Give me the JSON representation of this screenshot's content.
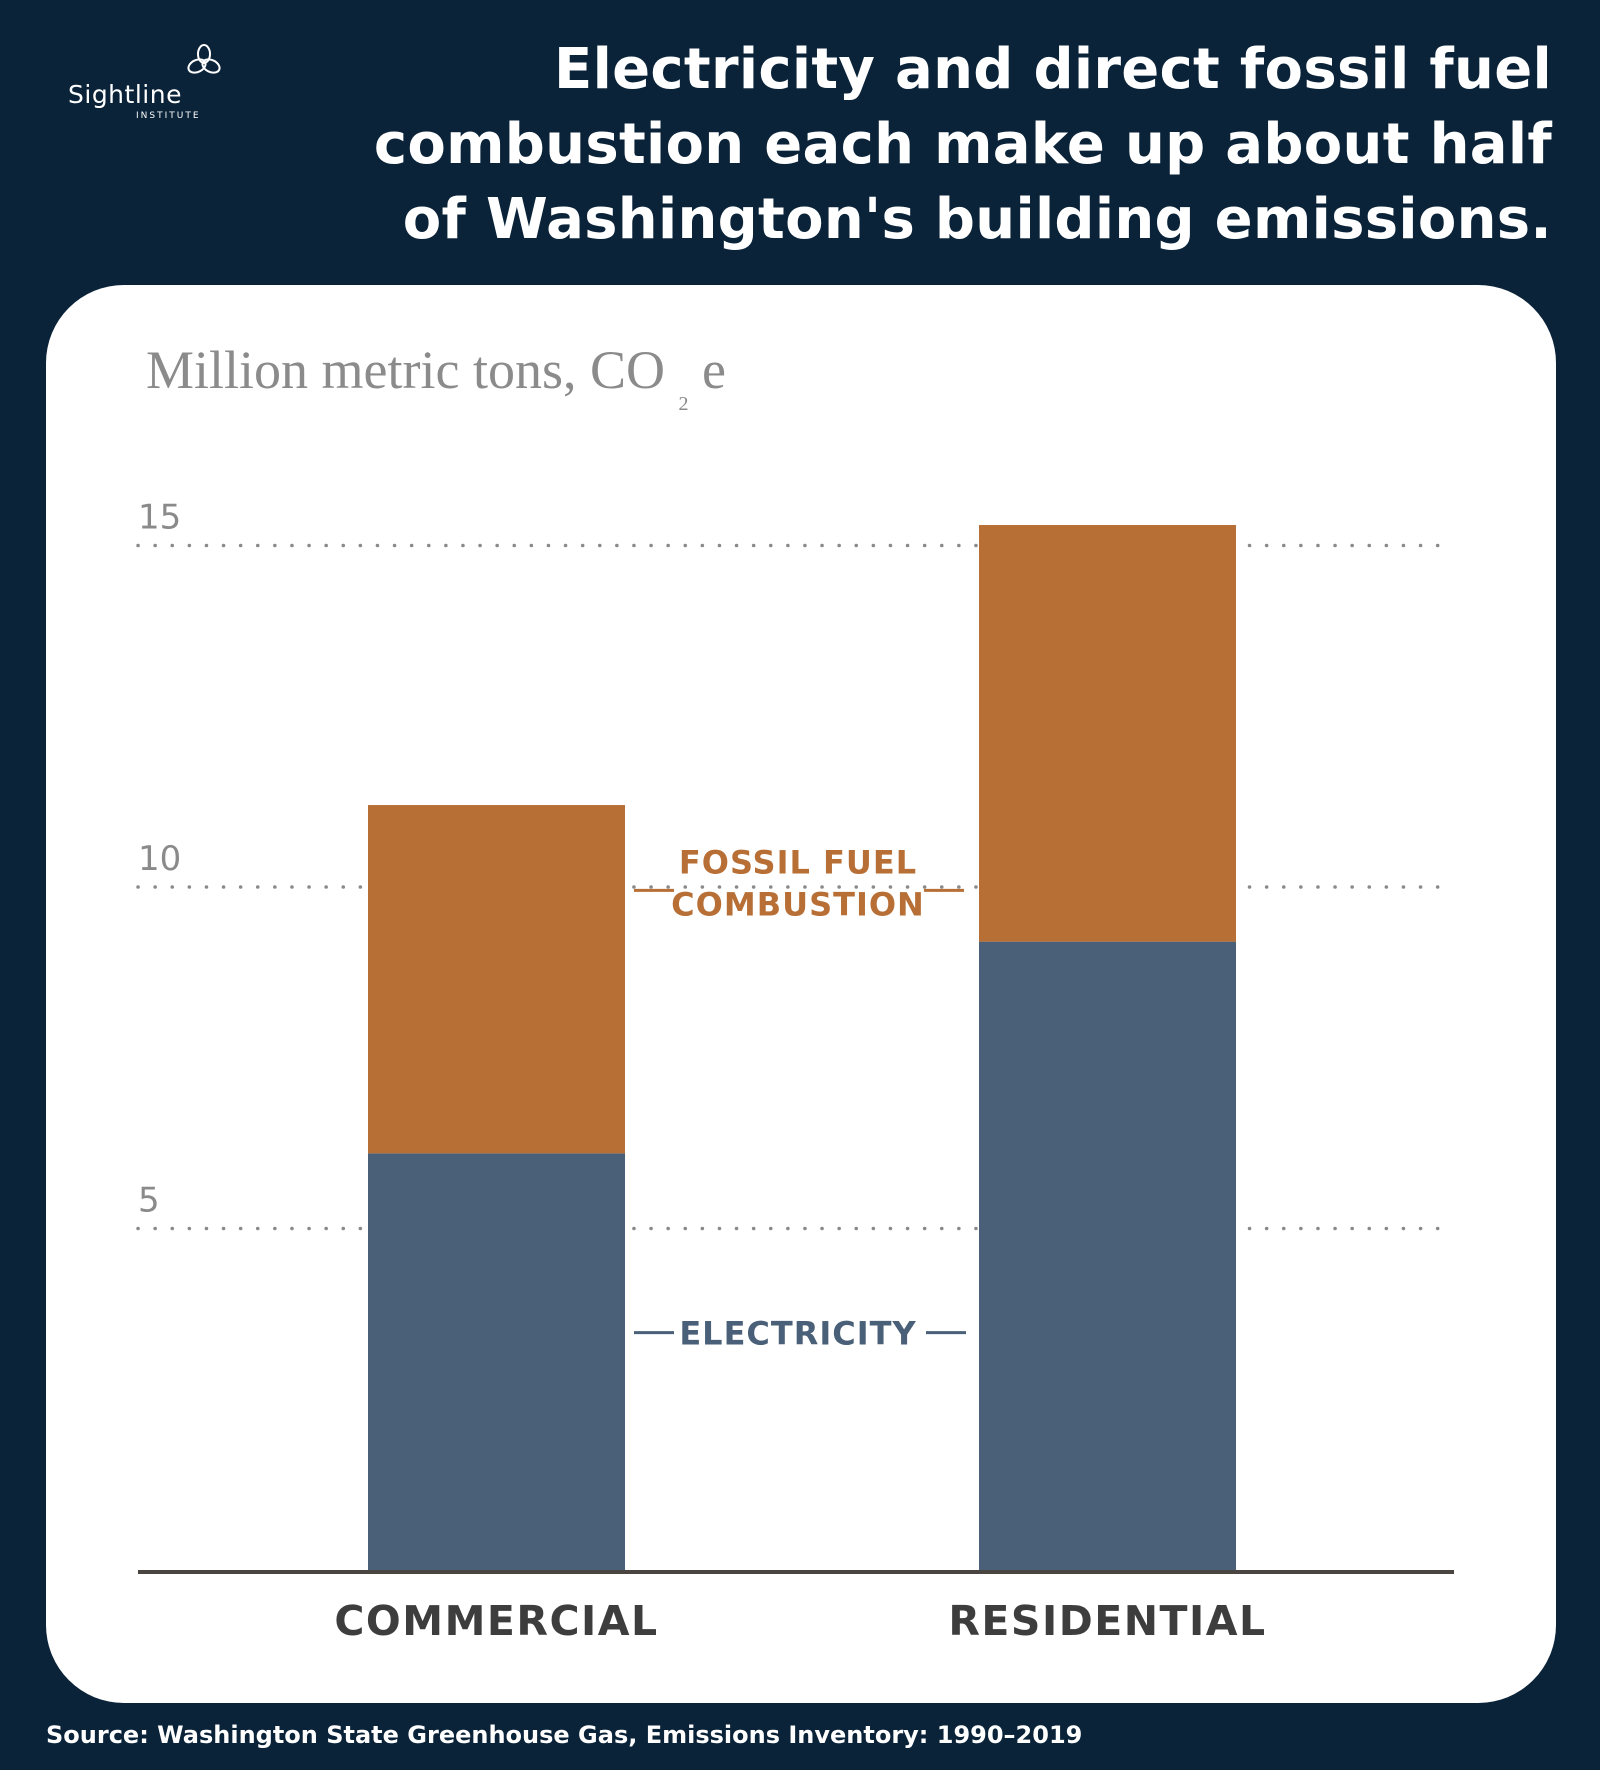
{
  "brand": {
    "name": "Sightline",
    "sub": "INSTITUTE"
  },
  "title_lines": [
    "Electricity and direct fossil fuel",
    "combustion each make up about half",
    "of Washington's building emissions."
  ],
  "source": "Source: Washington State Greenhouse Gas, Emissions Inventory: 1990–2019",
  "colors": {
    "background": "#0a2339",
    "card": "#ffffff",
    "electricity": "#4a5f78",
    "fossil_fuel": "#b76f35",
    "grid": "#8a8a8a",
    "axis": "#4a4541"
  },
  "chart_data": {
    "type": "bar",
    "stacked": true,
    "ylabel": {
      "main": "Million metric tons, CO",
      "sub": "2",
      "suffix": "e"
    },
    "ylim": [
      0,
      15.3
    ],
    "yticks": [
      5,
      10,
      15
    ],
    "grid": true,
    "categories": [
      "Commercial",
      "Residential"
    ],
    "series": [
      {
        "name": "Electricity",
        "values": [
          6.1,
          9.2
        ]
      },
      {
        "name": "Fossil Fuel Combustion",
        "values": [
          5.1,
          6.1
        ]
      }
    ],
    "series_label_lines": {
      "fossil": [
        "Fossil Fuel",
        "Combustion"
      ],
      "electricity": [
        "Electricity"
      ]
    }
  }
}
